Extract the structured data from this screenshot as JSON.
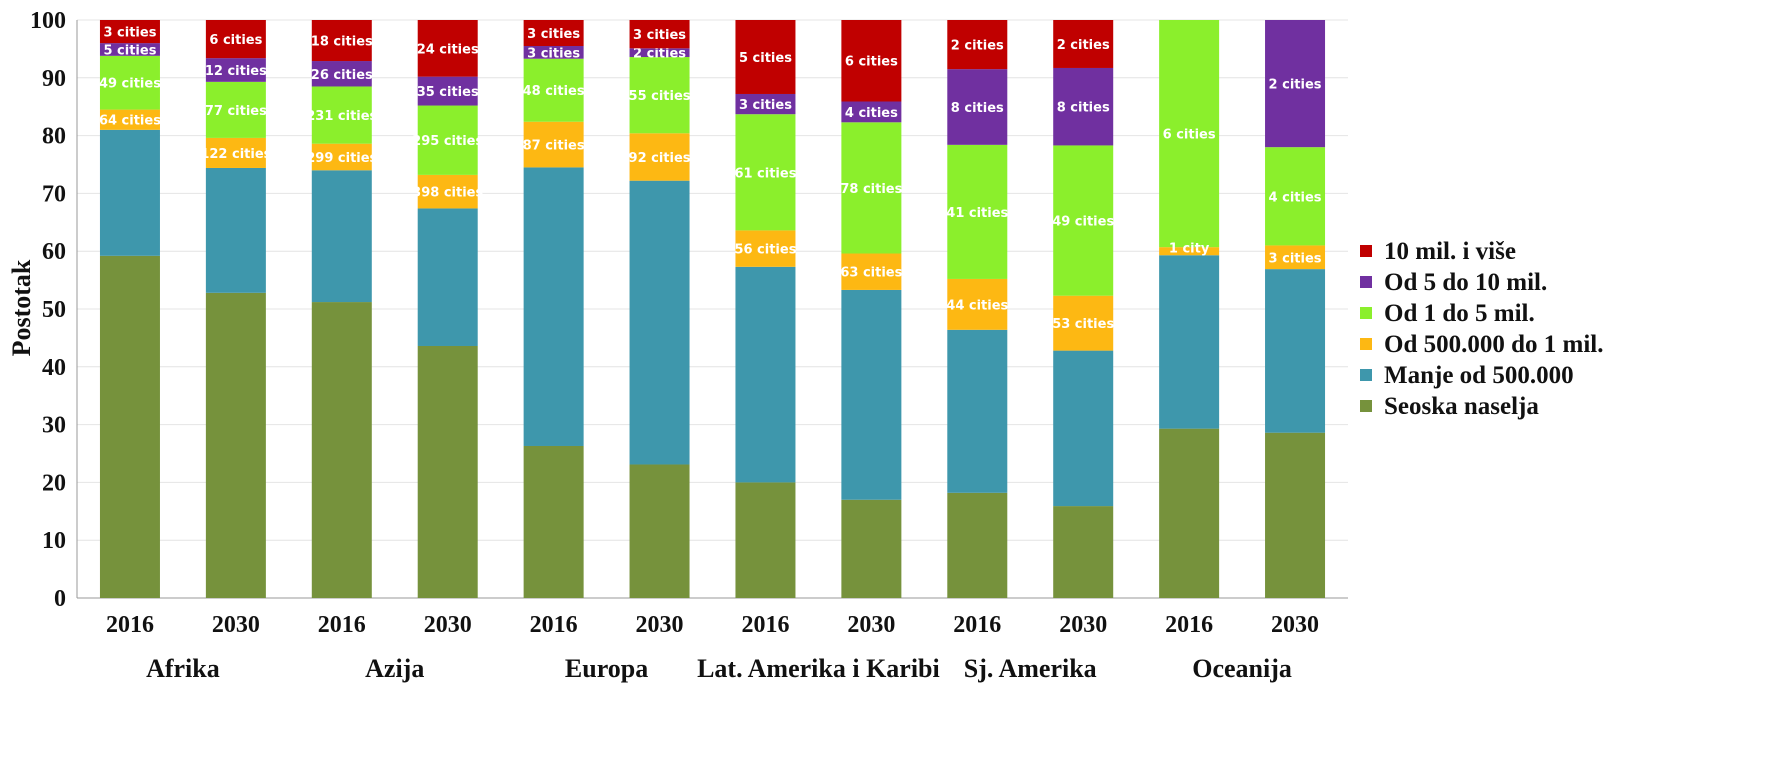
{
  "chart_data": {
    "type": "bar",
    "stacked": true,
    "ylabel": "Postotak",
    "ylim": [
      0,
      100
    ],
    "yticks": [
      0,
      10,
      20,
      30,
      40,
      50,
      60,
      70,
      80,
      90,
      100
    ],
    "grid": true,
    "legend_position": "right",
    "categories": [
      "2016",
      "2030",
      "2016",
      "2030",
      "2016",
      "2030",
      "2016",
      "2030",
      "2016",
      "2030",
      "2016",
      "2030"
    ],
    "groups": [
      "Afrika",
      "Azija",
      "Europa",
      "Lat. Amerika i Karibi",
      "Sj. Amerika",
      "Oceanija"
    ],
    "series": [
      {
        "name": "Seoska naselja",
        "color": "#76923c",
        "values": [
          59.2,
          52.8,
          51.2,
          43.6,
          26.3,
          23.1,
          20.0,
          17.0,
          18.2,
          15.9,
          29.3,
          28.6
        ],
        "labels": []
      },
      {
        "name": "Manje od 500.000",
        "color": "#3e97ac",
        "values": [
          21.8,
          21.6,
          22.8,
          23.8,
          48.2,
          49.1,
          37.3,
          36.3,
          28.2,
          26.9,
          30.0,
          28.3
        ],
        "labels": []
      },
      {
        "name": "Od 500.000 do 1 mil.",
        "color": "#fdb813",
        "values": [
          3.5,
          5.2,
          4.6,
          5.8,
          7.9,
          8.2,
          6.3,
          6.3,
          8.8,
          9.5,
          1.4,
          4.1
        ],
        "labels": [
          "64 cities",
          "122 cities",
          "299 cities",
          "398 cities",
          "87 cities",
          "92 cities",
          "56 cities",
          "63 cities",
          "44 cities",
          "53 cities",
          "",
          "3 cities"
        ]
      },
      {
        "name": "Od 1 do 5 mil.",
        "color": "#8bef2c",
        "values": [
          9.3,
          9.7,
          9.9,
          12.0,
          10.9,
          13.2,
          20.1,
          22.7,
          23.2,
          26.0,
          39.3,
          17.0
        ],
        "labels": [
          "49 cities",
          "77 cities",
          "231 cities",
          "295 cities",
          "48 cities",
          "55 cities",
          "61 cities",
          "78 cities",
          "41 cities",
          "49 cities",
          "6 cities",
          "4 cities"
        ]
      },
      {
        "name": "Od 5 do 10 mil.",
        "color": "#7030a0",
        "values": [
          2.2,
          4.1,
          4.4,
          5.0,
          2.2,
          1.5,
          3.5,
          3.6,
          13.1,
          13.4,
          0,
          22.0
        ],
        "labels": [
          "5 cities",
          "12 cities",
          "26 cities",
          "35 cities",
          "3 cities",
          "2 cities",
          "3 cities",
          "4 cities",
          "8 cities",
          "8 cities",
          "",
          "2 cities"
        ]
      },
      {
        "name": "10 mil. i više",
        "color": "#c00000",
        "values": [
          4.0,
          6.6,
          7.1,
          9.8,
          4.5,
          4.9,
          12.8,
          14.1,
          8.5,
          8.3,
          0,
          0
        ],
        "labels": [
          "3 cities",
          "6 cities",
          "18 cities",
          "24 cities",
          "3 cities",
          "3 cities",
          "5 cities",
          "6 cities",
          "2 cities",
          "2 cities",
          "",
          ""
        ]
      }
    ],
    "annotations": [
      {
        "category_index": 10,
        "text": "1 city",
        "y": 60.6
      }
    ]
  }
}
